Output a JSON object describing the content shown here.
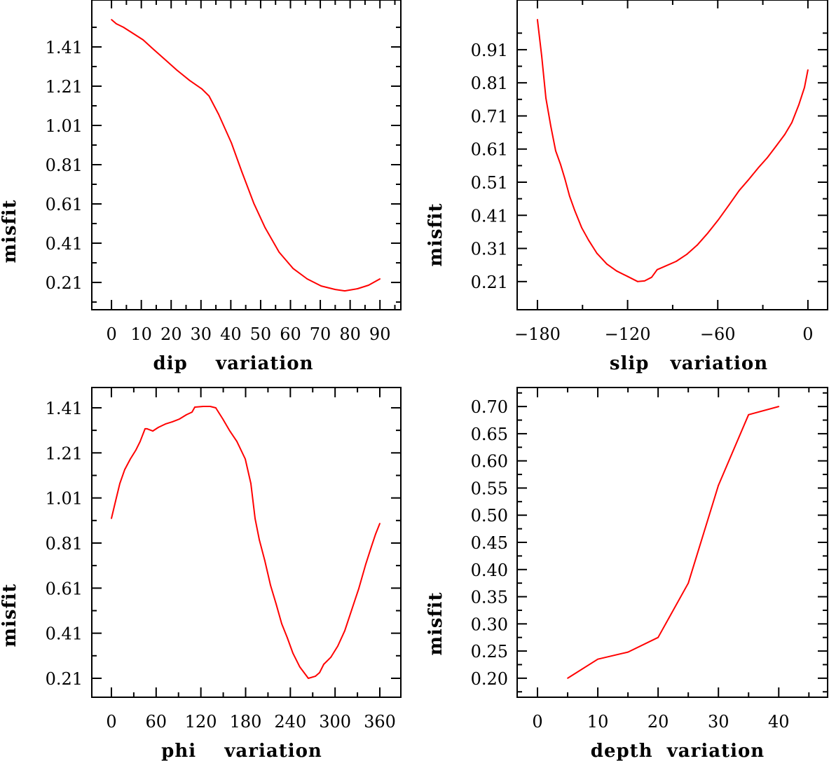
{
  "colors": {
    "line": "#ff0000",
    "axes": "#000000",
    "background": "#ffffff"
  },
  "chart_data": [
    {
      "type": "line",
      "xlabel": "dip    variation",
      "ylabel": "misfit",
      "xlim": [
        -6.6,
        97.0
      ],
      "ylim": [
        0.071,
        1.649
      ],
      "x_major_ticks": [
        0,
        10,
        20,
        30,
        40,
        50,
        60,
        70,
        80,
        90
      ],
      "x_tick_labels": [
        "0",
        "10",
        "20",
        "30",
        "40",
        "50",
        "60",
        "70",
        "80",
        "90"
      ],
      "x_minor_ticks": [
        5,
        15,
        25,
        35,
        45,
        55,
        65,
        75,
        85,
        95
      ],
      "y_major_ticks": [
        0.21,
        0.41,
        0.61,
        0.81,
        1.01,
        1.21,
        1.41
      ],
      "y_tick_labels": [
        "0.21",
        "0.41",
        "0.61",
        "0.81",
        "1.01",
        "1.21",
        "1.41"
      ],
      "y_minor_ticks": [
        0.11,
        0.31,
        0.51,
        0.71,
        0.91,
        1.11,
        1.31,
        1.51
      ],
      "grid": false,
      "series": [
        {
          "name": "dip",
          "x": [
            0,
            1.6,
            4.0,
            7.3,
            10.6,
            13.9,
            17.7,
            21.9,
            26.2,
            30.3,
            32.7,
            35.9,
            40.2,
            43.7,
            47.7,
            51.5,
            56.2,
            60.9,
            65.6,
            70.3,
            75.0,
            78.2,
            82.5,
            86.2,
            90.0
          ],
          "y": [
            1.549,
            1.528,
            1.51,
            1.478,
            1.446,
            1.4,
            1.349,
            1.292,
            1.239,
            1.196,
            1.16,
            1.067,
            0.921,
            0.774,
            0.614,
            0.489,
            0.364,
            0.281,
            0.228,
            0.192,
            0.174,
            0.167,
            0.178,
            0.196,
            0.228
          ]
        }
      ]
    },
    {
      "type": "line",
      "xlabel": "slip   variation",
      "ylabel": "misfit",
      "xlim": [
        -193.5,
        13.1
      ],
      "ylim": [
        0.125,
        1.06
      ],
      "x_major_ticks": [
        -180,
        -120,
        -60,
        0
      ],
      "x_tick_labels": [
        "−180",
        "−120",
        "−60",
        "0"
      ],
      "x_minor_ticks": [
        -150,
        -90,
        -30
      ],
      "y_major_ticks": [
        0.21,
        0.31,
        0.41,
        0.51,
        0.61,
        0.71,
        0.81,
        0.91
      ],
      "y_tick_labels": [
        "0.21",
        "0.31",
        "0.41",
        "0.51",
        "0.61",
        "0.71",
        "0.81",
        "0.91"
      ],
      "y_minor_ticks": [
        0.26,
        0.36,
        0.46,
        0.56,
        0.66,
        0.76,
        0.86,
        0.96
      ],
      "grid": false,
      "series": [
        {
          "name": "slip",
          "x": [
            -180.0,
            -177.2,
            -174.4,
            -171.1,
            -167.9,
            -164.6,
            -161.8,
            -158.6,
            -155.3,
            -150.6,
            -146.0,
            -140.4,
            -133.8,
            -127.3,
            -119.8,
            -113.3,
            -108.7,
            -104.0,
            -100.3,
            -94.7,
            -87.7,
            -80.7,
            -73.7,
            -66.7,
            -59.7,
            -52.7,
            -45.7,
            -39.6,
            -33.1,
            -27.0,
            -21.0,
            -15.4,
            -10.7,
            -6.1,
            -2.3,
            0
          ],
          "y": [
            1.001,
            0.891,
            0.764,
            0.679,
            0.605,
            0.563,
            0.521,
            0.468,
            0.426,
            0.373,
            0.335,
            0.295,
            0.263,
            0.242,
            0.225,
            0.21,
            0.212,
            0.223,
            0.246,
            0.257,
            0.271,
            0.292,
            0.32,
            0.356,
            0.396,
            0.44,
            0.485,
            0.517,
            0.553,
            0.584,
            0.62,
            0.654,
            0.69,
            0.743,
            0.796,
            0.849
          ]
        }
      ]
    },
    {
      "type": "line",
      "xlabel": "phi    variation",
      "ylabel": "misfit",
      "xlim": [
        -26.3,
        388.2
      ],
      "ylim": [
        0.126,
        1.5
      ],
      "x_major_ticks": [
        0,
        60,
        120,
        180,
        240,
        300,
        360
      ],
      "x_tick_labels": [
        "0",
        "60",
        "120",
        "180",
        "240",
        "300",
        "360"
      ],
      "x_minor_ticks": [
        30,
        90,
        150,
        210,
        270,
        330
      ],
      "y_major_ticks": [
        0.21,
        0.41,
        0.61,
        0.81,
        1.01,
        1.21,
        1.41
      ],
      "y_tick_labels": [
        "0.21",
        "0.41",
        "0.61",
        "0.81",
        "1.01",
        "1.21",
        "1.41"
      ],
      "y_minor_ticks": [
        0.31,
        0.51,
        0.71,
        0.91,
        1.11,
        1.31
      ],
      "grid": false,
      "series": [
        {
          "name": "phi",
          "x": [
            0,
            5.6,
            11.3,
            17.9,
            25.4,
            32.9,
            38.5,
            45.1,
            47.9,
            55.5,
            63.0,
            72.4,
            81.8,
            91.2,
            100.6,
            108.1,
            111.9,
            123.1,
            132.5,
            140.0,
            149.5,
            158.9,
            168.3,
            179.5,
            187.1,
            192.7,
            198.3,
            205.8,
            213.4,
            220.9,
            228.4,
            235.9,
            243.4,
            252.8,
            264.1,
            273.5,
            279.2,
            284.8,
            294.2,
            303.6,
            313.0,
            322.4,
            331.8,
            341.2,
            348.7,
            354.4,
            360.0
          ],
          "y": [
            0.919,
            0.996,
            1.074,
            1.136,
            1.183,
            1.223,
            1.26,
            1.317,
            1.317,
            1.307,
            1.323,
            1.338,
            1.348,
            1.36,
            1.379,
            1.391,
            1.413,
            1.416,
            1.416,
            1.41,
            1.36,
            1.307,
            1.261,
            1.183,
            1.074,
            0.919,
            0.825,
            0.732,
            0.623,
            0.54,
            0.452,
            0.39,
            0.322,
            0.26,
            0.21,
            0.219,
            0.235,
            0.272,
            0.303,
            0.353,
            0.421,
            0.515,
            0.608,
            0.717,
            0.794,
            0.85,
            0.897
          ]
        }
      ]
    },
    {
      "type": "line",
      "xlabel": "depth  variation",
      "ylabel": "misfit",
      "xlim": [
        -3.37,
        48.1
      ],
      "ylim": [
        0.165,
        0.735
      ],
      "x_major_ticks": [
        0,
        10,
        20,
        30,
        40
      ],
      "x_tick_labels": [
        "0",
        "10",
        "20",
        "30",
        "40"
      ],
      "x_minor_ticks": [
        5,
        15,
        25,
        35,
        45
      ],
      "y_major_ticks": [
        0.2,
        0.25,
        0.3,
        0.35,
        0.4,
        0.45,
        0.5,
        0.55,
        0.6,
        0.65,
        0.7
      ],
      "y_tick_labels": [
        "0.20",
        "0.25",
        "0.30",
        "0.35",
        "0.40",
        "0.45",
        "0.50",
        "0.55",
        "0.60",
        "0.65",
        "0.70"
      ],
      "y_minor_ticks": [
        0.175,
        0.225,
        0.275,
        0.325,
        0.375,
        0.425,
        0.475,
        0.525,
        0.575,
        0.625,
        0.675,
        0.725
      ],
      "grid": false,
      "series": [
        {
          "name": "depth",
          "x": [
            5,
            10,
            15,
            20,
            25,
            30,
            35,
            40
          ],
          "y": [
            0.2,
            0.235,
            0.248,
            0.275,
            0.375,
            0.555,
            0.685,
            0.7
          ]
        }
      ]
    }
  ]
}
